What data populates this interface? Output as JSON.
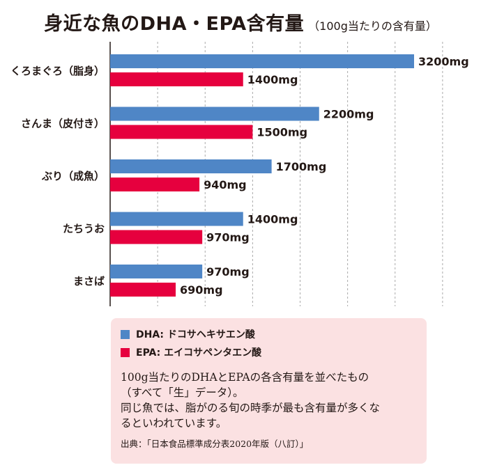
{
  "title": "身近な魚のDHA・EPA含有量",
  "subtitle": "（100g当たりの含有量）",
  "colors": {
    "dha": "#4f86c6",
    "epa": "#e6003e",
    "legend_bg": "#fbe1e2",
    "grid": "#aaaaaa"
  },
  "legend": {
    "dha_label": "DHA: ドコサヘキサエン酸",
    "epa_label": "EPA: エイコサペンタエン酸"
  },
  "note_lines": [
    "100g当たりのDHAとEPAの各含有量を並べたもの",
    "（すべて「生」データ）。",
    "同じ魚では、脂がのる旬の時季が最も含有量が多くな",
    "るといわれています。"
  ],
  "source": "出典：「日本食品標準成分表2020年版（八訂）」",
  "chart_data": {
    "type": "bar",
    "orientation": "horizontal",
    "title": "身近な魚のDHA・EPA含有量",
    "subtitle": "（100g当たりの含有量）",
    "categories": [
      "くろまぐろ（脂身）",
      "さんま（皮付き）",
      "ぶり（成魚）",
      "たちうお",
      "まさば"
    ],
    "series": [
      {
        "name": "DHA: ドコサヘキサエン酸",
        "values": [
          3200,
          2200,
          1700,
          1400,
          970
        ],
        "labels": [
          "3200mg",
          "2200mg",
          "1700mg",
          "1400mg",
          "970mg"
        ]
      },
      {
        "name": "EPA: エイコサペンタエン酸",
        "values": [
          1400,
          1500,
          940,
          970,
          690
        ],
        "labels": [
          "1400mg",
          "1500mg",
          "940mg",
          "970mg",
          "690mg"
        ]
      }
    ],
    "unit": "mg",
    "xlim": [
      0,
      3500
    ],
    "grid_step": 500,
    "grid": true,
    "legend_position": "bottom"
  }
}
